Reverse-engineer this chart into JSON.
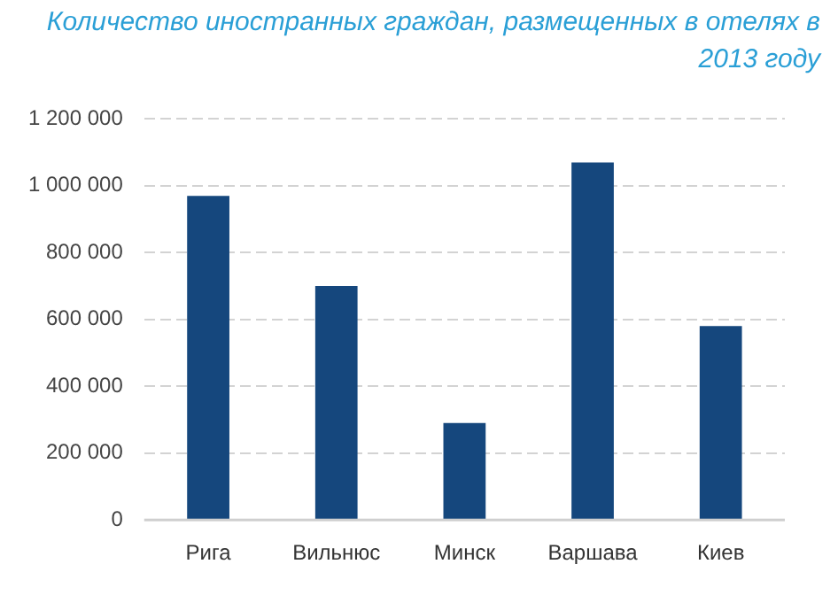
{
  "chart_data": {
    "type": "bar",
    "title": "Количество иностранных граждан, размещенных в отелях в 2013 году",
    "categories": [
      "Рига",
      "Вильнюс",
      "Минск",
      "Варшава",
      "Киев"
    ],
    "values": [
      970000,
      700000,
      290000,
      1070000,
      580000
    ],
    "color": "#15477d",
    "ylim": [
      0,
      1200000
    ],
    "yticks": [
      0,
      {
        "value": 200000,
        "label": "200 000"
      },
      {
        "value": 400000,
        "label": "400 000"
      },
      {
        "value": 600000,
        "label": "600 000"
      },
      {
        "value": 800000,
        "label": "800 000"
      },
      {
        "value": 1000000,
        "label": "1 000 000"
      },
      {
        "value": 1200000,
        "label": "1 200 000"
      }
    ],
    "grid": "y",
    "legend": false
  }
}
